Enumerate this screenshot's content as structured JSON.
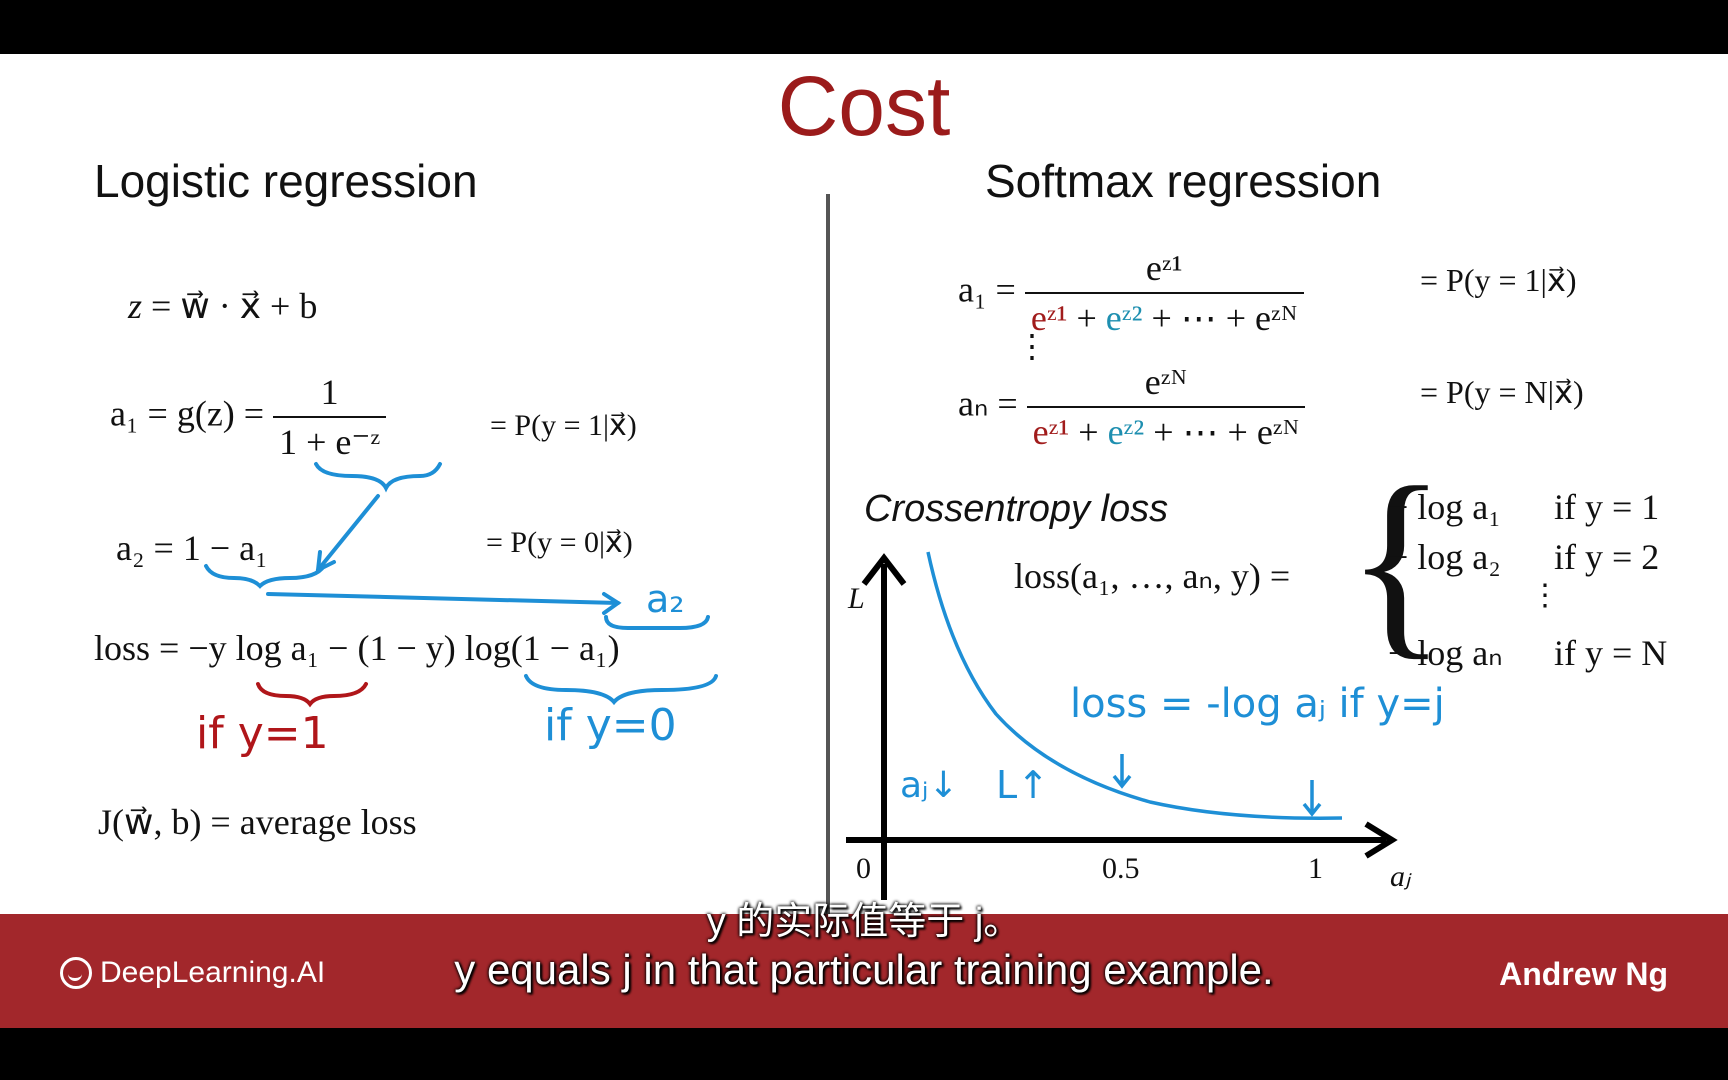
{
  "slide": {
    "title": "Cost",
    "left_heading": "Logistic regression",
    "right_heading": "Softmax regression"
  },
  "logistic": {
    "z_lhs": "z",
    "z_rhs": "= w⃗ · x⃗ + b",
    "a1_lhs": "a₁ = g(z) =",
    "a1_num": "1",
    "a1_den": "1 + e⁻ᶻ",
    "a1_prob": "= P(y = 1|x⃗)",
    "a2_expr": "a₂ = 1 − a₁",
    "a2_prob": "= P(y = 0|x⃗)",
    "loss_expr": "loss = −y log a₁ − (1 − y) log(1 − a₁)",
    "cost_expr": "J(w⃗, b) = average loss"
  },
  "softmax": {
    "a1_lhs": "a₁ =",
    "a1_num": "eᶻ¹",
    "den_e1": "eᶻ¹",
    "den_plus1": " + ",
    "den_e2": "eᶻ²",
    "den_rest": " + ⋯ + eᶻᴺ",
    "a1_prob": "= P(y = 1|x⃗)",
    "vdots": "⋮",
    "aN_lhs": "aₙ =",
    "aN_num": "eᶻᴺ",
    "aN_prob": "= P(y = N|x⃗)",
    "crossentropy_label": "Crossentropy loss",
    "loss_lhs": "loss(a₁, …, aₙ, y) =",
    "cases": [
      {
        "expr": "− log a₁",
        "cond": "if y = 1"
      },
      {
        "expr": "− log a₂",
        "cond": "if y = 2"
      },
      {
        "expr": "⋮",
        "cond": ""
      },
      {
        "expr": "− log aₙ",
        "cond": "if y = N"
      }
    ]
  },
  "graph": {
    "y_axis_label": "L",
    "x_axis_label": "aⱼ",
    "x_ticks": [
      "0",
      "0.5",
      "1"
    ]
  },
  "handwritten": {
    "a2_note": "a₂",
    "if_y1": "if y=1",
    "if_y0": "if y=0",
    "loss_note": "loss = -log aⱼ  if y=j",
    "aj_down": "aⱼ↓",
    "L_up": "L↑"
  },
  "footer": {
    "brand": "DeepLearning.AI",
    "presenter": "Andrew Ng",
    "subtitle_zh": "y 的实际值等于 j。",
    "subtitle_en": "y equals j in that particular training example."
  },
  "colors": {
    "title": "#9b1b1b",
    "footer_band": "#a2272b",
    "annotation_blue": "#1e8fd6",
    "annotation_red": "#b0161a"
  }
}
